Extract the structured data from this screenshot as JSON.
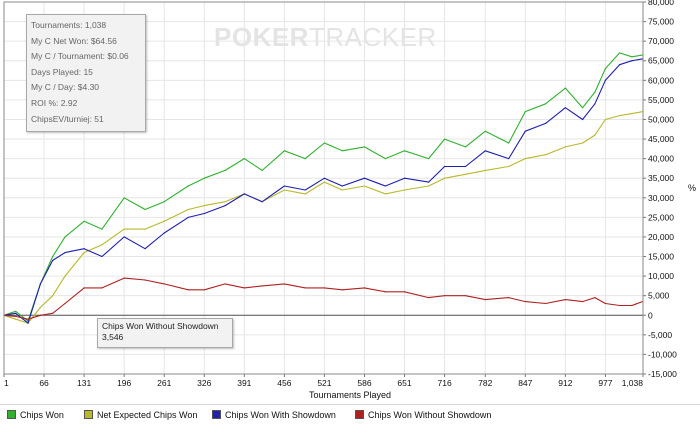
{
  "watermark": {
    "part1": "POKER",
    "part2": "TRACKER"
  },
  "stats": [
    "Tournaments: 1,038",
    "My C Net Won: $64.56",
    "My C / Tournament: $0.06",
    "Days Played: 15",
    "My C / Day: $4.30",
    "ROI %: 2.92",
    "ChipsEV/turniej: 51"
  ],
  "tooltip": {
    "title": "Chips Won Without Showdown",
    "value": "3,546"
  },
  "unit_label": "%",
  "legend": [
    {
      "label": "Chips Won",
      "color": "#2fb12f"
    },
    {
      "label": "Net Expected Chips Won",
      "color": "#b8b82a"
    },
    {
      "label": "Chips Won With Showdown",
      "color": "#1f1fb0"
    },
    {
      "label": "Chips Won Without Showdown",
      "color": "#b02020"
    }
  ],
  "chart_data": {
    "type": "line",
    "xlabel": "Tournaments Played",
    "ylabel": "",
    "xlim": [
      1,
      1038
    ],
    "ylim": [
      -15000,
      80000
    ],
    "grid": true,
    "legend_position": "bottom",
    "x_ticks": [
      "1",
      "66",
      "131",
      "196",
      "261",
      "326",
      "391",
      "456",
      "521",
      "586",
      "651",
      "716",
      "782",
      "847",
      "912",
      "977",
      "1,038"
    ],
    "y_ticks": [
      "-15,000",
      "-10,000",
      "-5,000",
      "0",
      "5,000",
      "10,000",
      "15,000",
      "20,000",
      "25,000",
      "30,000",
      "35,000",
      "40,000",
      "45,000",
      "50,000",
      "55,000",
      "60,000",
      "65,000",
      "70,000",
      "75,000",
      "80,000"
    ],
    "x": [
      1,
      20,
      40,
      60,
      80,
      100,
      131,
      160,
      196,
      230,
      261,
      300,
      326,
      360,
      391,
      420,
      456,
      490,
      521,
      550,
      586,
      620,
      651,
      690,
      716,
      750,
      782,
      820,
      847,
      880,
      912,
      940,
      960,
      977,
      1000,
      1020,
      1038
    ],
    "series": [
      {
        "name": "Chips Won",
        "color": "#2fb12f",
        "values": [
          0,
          1000,
          -1500,
          8000,
          15000,
          20000,
          24000,
          22000,
          30000,
          27000,
          29000,
          33000,
          35000,
          37000,
          40000,
          37000,
          42000,
          40000,
          44000,
          42000,
          43000,
          40000,
          42000,
          40000,
          45000,
          43000,
          47000,
          44000,
          52000,
          54000,
          58000,
          53000,
          57000,
          63000,
          67000,
          66000,
          66500
        ]
      },
      {
        "name": "Net Expected Chips Won",
        "color": "#b8b82a",
        "values": [
          0,
          -1000,
          -2000,
          2000,
          5000,
          10000,
          16000,
          18000,
          22000,
          22000,
          24000,
          27000,
          28000,
          29000,
          31000,
          29000,
          32000,
          31000,
          34000,
          32000,
          33000,
          31000,
          32000,
          33000,
          35000,
          36000,
          37000,
          38000,
          40000,
          41000,
          43000,
          44000,
          46000,
          50000,
          51000,
          51500,
          52000
        ]
      },
      {
        "name": "Chips Won With Showdown",
        "color": "#1f1fb0",
        "values": [
          0,
          500,
          -2000,
          8000,
          14000,
          16000,
          17000,
          15000,
          20000,
          17000,
          21000,
          25000,
          26000,
          28000,
          31000,
          29000,
          33000,
          32000,
          35000,
          33000,
          35000,
          33000,
          35000,
          34000,
          38000,
          38000,
          42000,
          40000,
          47000,
          49000,
          53000,
          50000,
          54000,
          60000,
          64000,
          65000,
          65500
        ]
      },
      {
        "name": "Chips Won Without Showdown",
        "color": "#b02020",
        "values": [
          0,
          -300,
          -1000,
          0,
          500,
          3000,
          7000,
          7000,
          9500,
          9000,
          8000,
          6500,
          6500,
          8000,
          7000,
          7500,
          8000,
          7000,
          7000,
          6500,
          7000,
          6000,
          6000,
          4500,
          5000,
          5000,
          4000,
          4500,
          3500,
          3000,
          4000,
          3500,
          4500,
          3000,
          2500,
          2500,
          3546
        ]
      }
    ]
  }
}
